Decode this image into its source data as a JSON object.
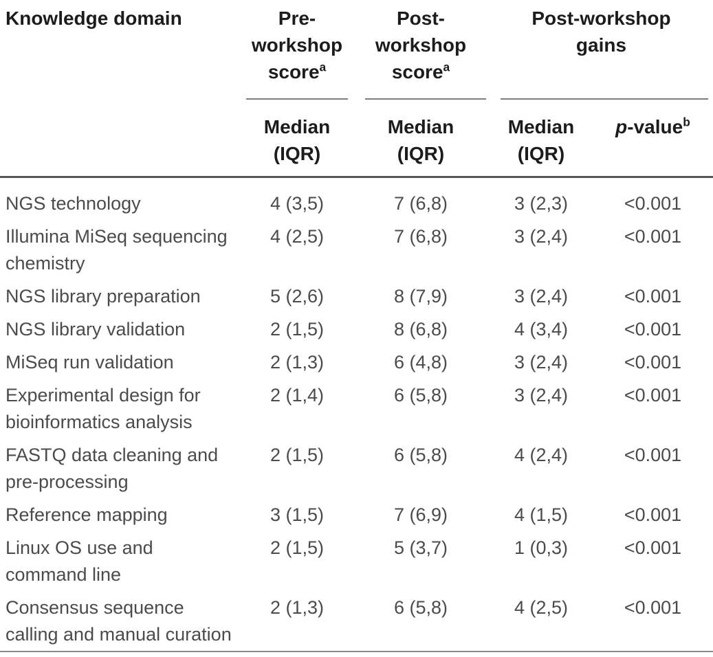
{
  "header": {
    "domain": "Knowledge domain",
    "pre_workshop": {
      "line1": "Pre-",
      "line2": "workshop",
      "line3": "score",
      "superscript": "a"
    },
    "post_workshop": {
      "line1": "Post-",
      "line2": "workshop",
      "line3": "score",
      "superscript": "a"
    },
    "gains": {
      "line1": "Post-workshop",
      "line2": "gains"
    },
    "median_label": {
      "line1": "Median",
      "line2": "(IQR)"
    },
    "p_value": {
      "prefix_italic": "p",
      "rest": "-value",
      "superscript": "b"
    }
  },
  "rows": [
    {
      "domain_lines": [
        "NGS technology"
      ],
      "pre": "4 (3,5)",
      "post": "7 (6,8)",
      "gain": "3 (2,3)",
      "p_value": "<0.001"
    },
    {
      "domain_lines": [
        "Illumina MiSeq sequencing",
        "chemistry"
      ],
      "pre": "4 (2,5)",
      "post": "7 (6,8)",
      "gain": "3 (2,4)",
      "p_value": "<0.001"
    },
    {
      "domain_lines": [
        "NGS library preparation"
      ],
      "pre": "5 (2,6)",
      "post": "8 (7,9)",
      "gain": "3 (2,4)",
      "p_value": "<0.001"
    },
    {
      "domain_lines": [
        "NGS library validation"
      ],
      "pre": "2 (1,5)",
      "post": "8 (6,8)",
      "gain": "4 (3,4)",
      "p_value": "<0.001"
    },
    {
      "domain_lines": [
        "MiSeq run validation"
      ],
      "pre": "2 (1,3)",
      "post": "6 (4,8)",
      "gain": "3 (2,4)",
      "p_value": "<0.001"
    },
    {
      "domain_lines": [
        "Experimental design for",
        "bioinformatics analysis"
      ],
      "pre": "2 (1,4)",
      "post": "6 (5,8)",
      "gain": "3 (2,4)",
      "p_value": "<0.001"
    },
    {
      "domain_lines": [
        "FASTQ data cleaning and",
        "pre-processing"
      ],
      "pre": "2 (1,5)",
      "post": "6 (5,8)",
      "gain": "4 (2,4)",
      "p_value": "<0.001"
    },
    {
      "domain_lines": [
        "Reference mapping"
      ],
      "pre": "3 (1,5)",
      "post": "7 (6,9)",
      "gain": "4 (1,5)",
      "p_value": "<0.001"
    },
    {
      "domain_lines": [
        "Linux OS use and",
        "command line"
      ],
      "pre": "2 (1,5)",
      "post": "5 (3,7)",
      "gain": "1 (0,3)",
      "p_value": "<0.001"
    },
    {
      "domain_lines": [
        "Consensus sequence",
        "calling and manual curation"
      ],
      "pre": "2 (1,3)",
      "post": "6 (5,8)",
      "gain": "4 (2,5)",
      "p_value": "<0.001"
    }
  ],
  "colors": {
    "header_text": "#1c1c1c",
    "body_text": "#4b4b4b",
    "rule_dark": "#565656",
    "rule_light": "#7d7d7d"
  }
}
